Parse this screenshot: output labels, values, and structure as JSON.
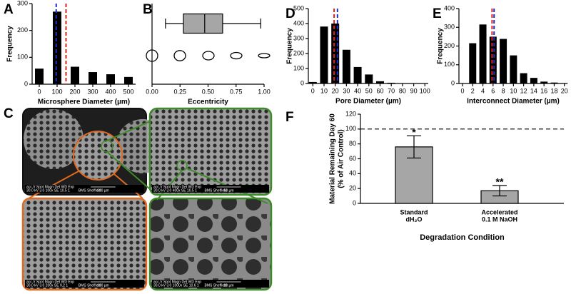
{
  "chart_data": [
    {
      "type": "histogram",
      "panel": "A",
      "x_label": "Microsphere Diameter (µm)",
      "y_label": "Frequency",
      "x": [
        0,
        100,
        200,
        300,
        400,
        500
      ],
      "values": [
        58,
        270,
        65,
        45,
        37,
        27
      ],
      "color": "#000000",
      "xlim": [
        -40,
        540
      ],
      "xticks": [
        0,
        100,
        200,
        300,
        400,
        500
      ],
      "ylim": [
        0,
        300
      ],
      "yticks": [
        0,
        100,
        200,
        300
      ],
      "reference_lines": [
        {
          "value": 95,
          "color": "#1f2fc4"
        },
        {
          "value": 150,
          "color": "#e0201c"
        }
      ]
    },
    {
      "type": "box",
      "panel": "B",
      "x_label": "Eccentricity",
      "color": "#a6a6a6",
      "box": {
        "min": 0.12,
        "q1": 0.28,
        "median": 0.47,
        "q3": 0.63,
        "max": 0.97
      },
      "xlim": [
        0,
        1
      ],
      "xticks": [
        {
          "value": 0,
          "label": "0.00"
        },
        {
          "value": 0.25,
          "label": "0.25"
        },
        {
          "value": 0.5,
          "label": "0.50"
        },
        {
          "value": 0.75,
          "label": "0.75"
        },
        {
          "value": 1,
          "label": "1.00"
        }
      ]
    },
    {
      "type": "histogram",
      "panel": "D",
      "x_label": "Pore Diameter (µm)",
      "y_label": "Frequency",
      "x": [
        0,
        10,
        20,
        30,
        40,
        50,
        60,
        70,
        80,
        90,
        100
      ],
      "values": [
        10,
        380,
        400,
        225,
        110,
        60,
        15,
        5,
        2,
        1,
        0
      ],
      "color": "#000000",
      "xlim": [
        -4,
        103
      ],
      "xticks": [
        0,
        10,
        20,
        30,
        40,
        50,
        60,
        70,
        80,
        90,
        100
      ],
      "ylim": [
        0,
        500
      ],
      "yticks": [
        0,
        100,
        200,
        300,
        400,
        500
      ],
      "reference_lines": [
        {
          "value": 19,
          "color": "#e0201c"
        },
        {
          "value": 22,
          "color": "#1f2fc4"
        }
      ]
    },
    {
      "type": "histogram",
      "panel": "E",
      "x_label": "Interconnect Diameter (µm)",
      "y_label": "Frequency",
      "x": [
        0,
        2,
        4,
        6,
        8,
        10,
        12,
        14,
        16,
        18,
        20
      ],
      "values": [
        0,
        215,
        315,
        250,
        238,
        150,
        55,
        30,
        10,
        5,
        2
      ],
      "color": "#000000",
      "xlim": [
        -0.7,
        20.6
      ],
      "xticks": [
        0,
        2,
        4,
        6,
        8,
        10,
        12,
        14,
        16,
        18,
        20
      ],
      "ylim": [
        0,
        400
      ],
      "yticks": [
        0,
        100,
        200,
        300,
        400
      ],
      "reference_lines": [
        {
          "value": 5.8,
          "color": "#e0201c"
        },
        {
          "value": 6.2,
          "color": "#1f2fc4"
        }
      ]
    },
    {
      "type": "bar",
      "panel": "F",
      "x_label": "Degradation Condition",
      "y_label": [
        "Material Remaining Day 60",
        "(% of Air Control)"
      ],
      "categories": [
        [
          "Standard",
          "dH₂O"
        ],
        [
          "Accelerated",
          "0.1 M NaOH"
        ]
      ],
      "values": [
        76,
        17
      ],
      "errors": [
        15,
        7
      ],
      "annotations": [
        "*",
        "**"
      ],
      "color": "#a6a6a6",
      "reference_line": 100,
      "ylim": [
        0,
        120
      ],
      "yticks": [
        0,
        20,
        40,
        60,
        80,
        100,
        120
      ]
    }
  ],
  "panel_c": {
    "panel": "C",
    "images": [
      {
        "header": "acc.V  Spot Magn   Det  WD   Exp",
        "params": "30.0 kV 3.0  100x   SE  10.5  1",
        "scale": "200 µm",
        "lab": "BMS Sheffield"
      },
      {
        "header": "acc.V  Spot Magn   Det  WD   Exp",
        "params": "30.0 kV 3.0  400x   SE  10.5  1",
        "scale": "50 µm",
        "lab": "BMS Sheffield"
      },
      {
        "header": "acc.V  Spot Magn   Det  WD   Exp",
        "params": "30.0 kV 3.0  200x   SE  9.2   1",
        "scale": "100 µm",
        "lab": "BMS Sheffield"
      },
      {
        "header": "acc.V  Spot Magn   Det  WD   Exp",
        "params": "30.0 kV 3.0  1000x  SE  10.6  1",
        "scale": "20 µm",
        "lab": "BMS Sheffield"
      }
    ]
  }
}
